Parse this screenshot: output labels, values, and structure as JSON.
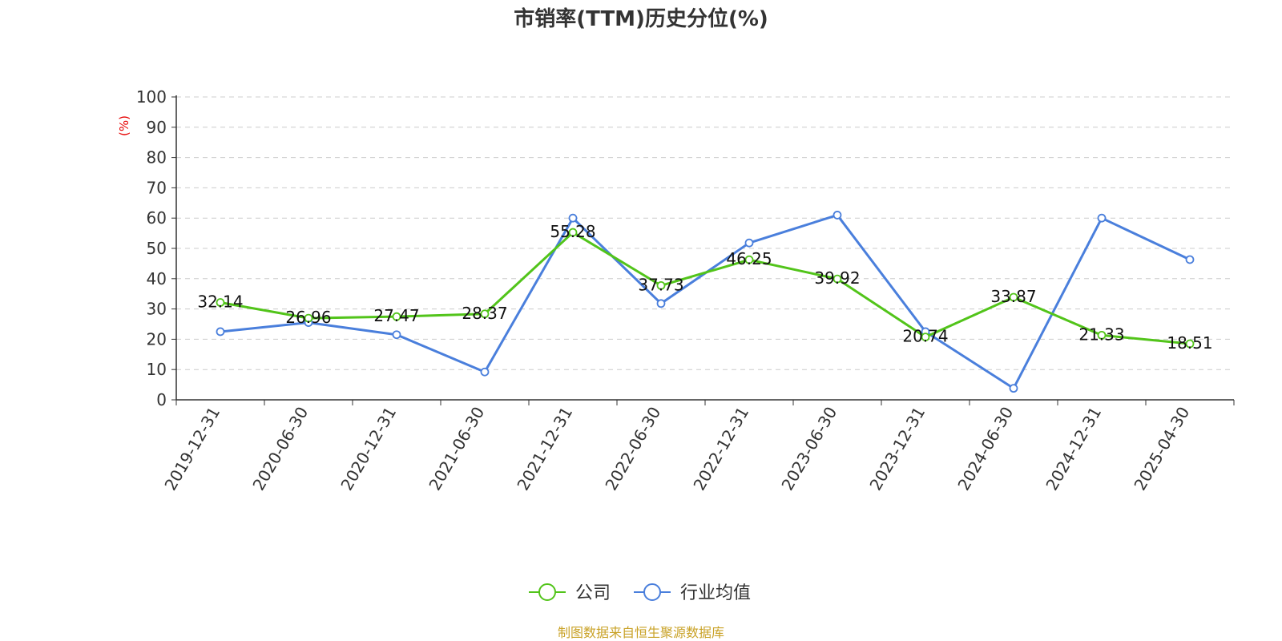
{
  "chart_data": {
    "type": "line",
    "title": "市销率(TTM)历史分位(%)",
    "ylabel": "(%)",
    "ylim": [
      0,
      100
    ],
    "yticks": [
      0,
      10,
      20,
      30,
      40,
      50,
      60,
      70,
      80,
      90,
      100
    ],
    "categories": [
      "2019-12-31",
      "2020-06-30",
      "2020-12-31",
      "2021-06-30",
      "2021-12-31",
      "2022-06-30",
      "2022-12-31",
      "2023-06-30",
      "2023-12-31",
      "2024-06-30",
      "2024-12-31",
      "2025-04-30"
    ],
    "series": [
      {
        "name": "公司",
        "color": "#52c41a",
        "show_labels": true,
        "values": [
          32.14,
          26.96,
          27.47,
          28.37,
          55.28,
          37.73,
          46.25,
          39.92,
          20.74,
          33.87,
          21.33,
          18.51
        ]
      },
      {
        "name": "行业均值",
        "color": "#4a7fdc",
        "show_labels": false,
        "values": [
          22.5,
          25.5,
          21.5,
          9.2,
          60.0,
          31.8,
          51.8,
          61.0,
          22.5,
          3.8,
          60.0,
          46.3
        ]
      }
    ],
    "grid": true,
    "legend": "bottom-center",
    "unit_color": "#e60000"
  },
  "source": {
    "text": "制图数据来自恒生聚源数据库",
    "color": "#c9a227"
  }
}
